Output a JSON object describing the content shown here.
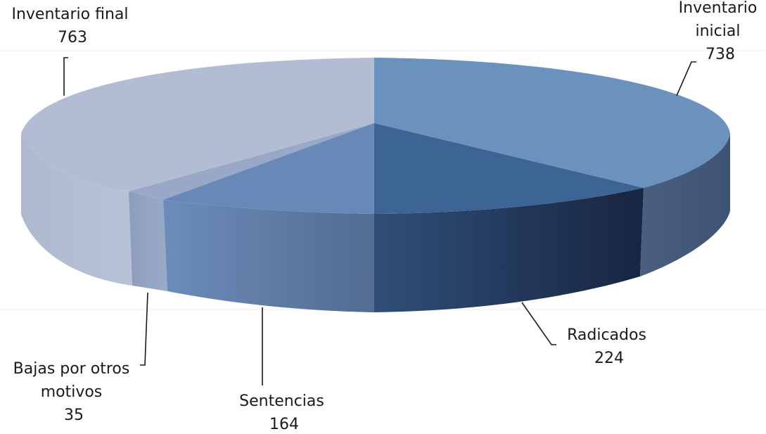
{
  "chart_data": {
    "type": "pie",
    "style": "3d-exploded-ellipse",
    "title": "",
    "slices": [
      {
        "label_lines": [
          "Inventario",
          "inicial"
        ],
        "value": 738,
        "color": "#6b92bd"
      },
      {
        "label_lines": [
          "Radicados"
        ],
        "value": 224,
        "color": "#3c6596"
      },
      {
        "label_lines": [
          "Sentencias"
        ],
        "value": 164,
        "color": "#6888b8"
      },
      {
        "label_lines": [
          "Bajas por otros",
          "motivos"
        ],
        "value": 35,
        "color": "#98a8c6"
      },
      {
        "label_lines": [
          "Inventario final"
        ],
        "value": 763,
        "color": "#b2bdd3"
      }
    ]
  }
}
